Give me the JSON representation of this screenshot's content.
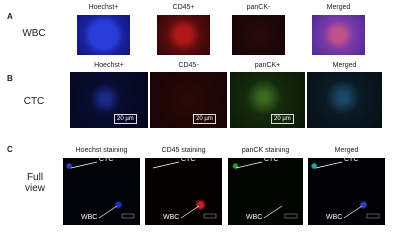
{
  "panels": [
    {
      "label": "A",
      "row_label": "WBC",
      "headers": [
        "Hoechst+",
        "CD45+",
        "panCK-",
        "Merged"
      ]
    },
    {
      "label": "B",
      "row_label": "CTC",
      "headers": [
        "Hoechst+",
        "CD45-",
        "panCK+",
        "Merged"
      ],
      "scale_bars": [
        "20 µm",
        "20 µm",
        "20 µm"
      ]
    },
    {
      "label": "C",
      "row_label": "Full view",
      "headers": [
        "Hoechst staining",
        "CD45 staining",
        "panCK staining",
        "Merged"
      ],
      "callouts": [
        [
          "CTC",
          "WBC"
        ],
        [
          "CTC",
          "WBC"
        ],
        [
          "CTC",
          "WBC"
        ],
        [
          "CTC",
          "WBC"
        ]
      ]
    }
  ]
}
